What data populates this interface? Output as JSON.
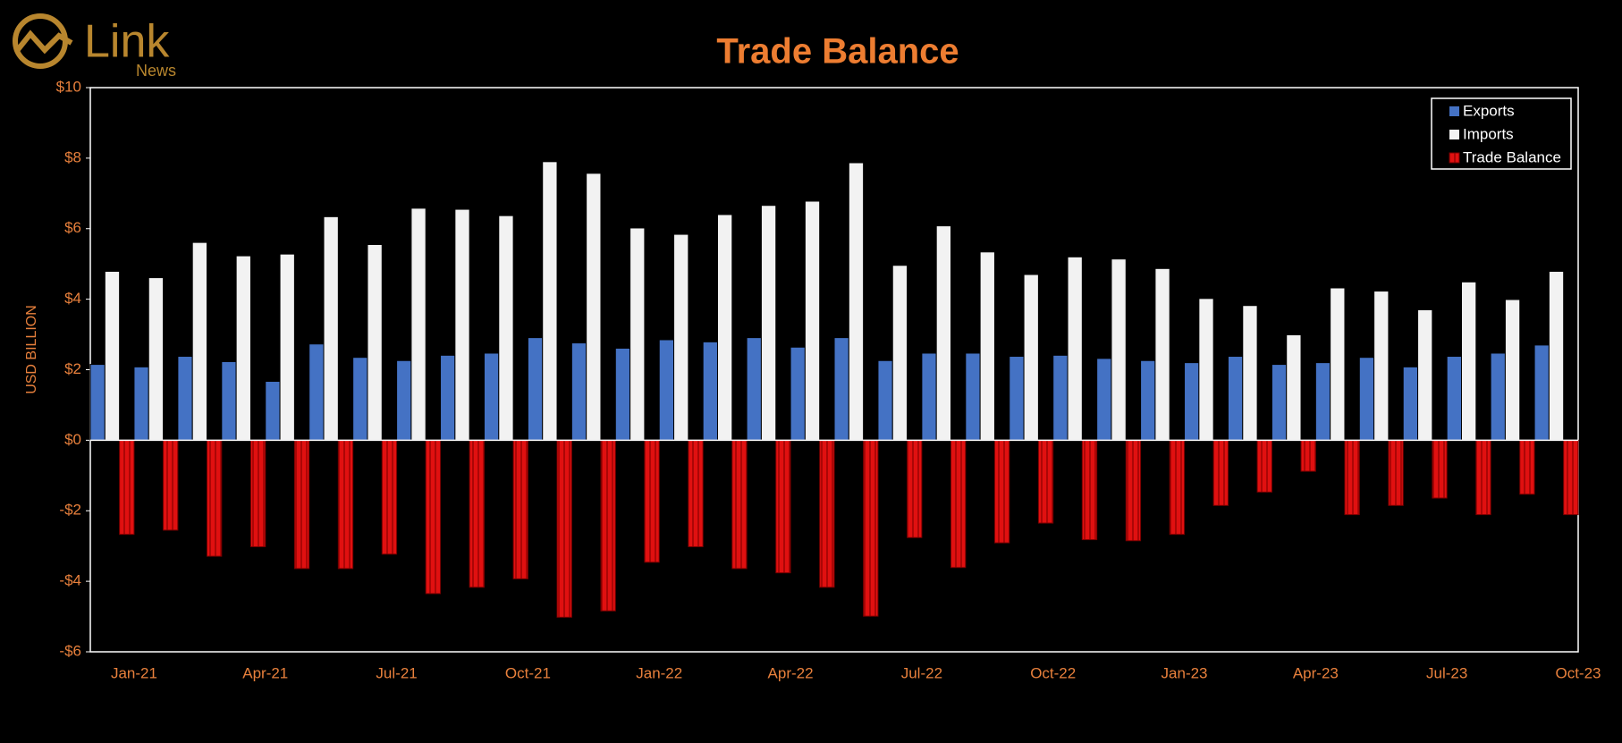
{
  "logo": {
    "text": "Link",
    "sub": "News"
  },
  "chart_data": {
    "type": "bar",
    "title": "Trade Balance",
    "y_label": "USD BILLION",
    "categories": [
      "Jan-21",
      null,
      null,
      "Apr-21",
      null,
      null,
      "Jul-21",
      null,
      null,
      "Oct-21",
      null,
      null,
      "Jan-22",
      null,
      null,
      "Apr-22",
      null,
      null,
      "Jul-22",
      null,
      null,
      "Oct-22",
      null,
      null,
      "Jan-23",
      null,
      null,
      "Apr-23",
      null,
      null,
      "Jul-23",
      null,
      null,
      "Oct-23"
    ],
    "series": [
      {
        "name": "Exports",
        "color": "#4472c4",
        "values": [
          2.15,
          2.08,
          2.38,
          2.23,
          1.67,
          2.73,
          2.35,
          2.26,
          2.41,
          2.47,
          2.91,
          2.76,
          2.61,
          2.85,
          2.79,
          2.91,
          2.64,
          2.91,
          2.26,
          2.47,
          2.47,
          2.38,
          2.41,
          2.32,
          2.26,
          2.2,
          2.38,
          2.15,
          2.2,
          2.35,
          2.08,
          2.38,
          2.47,
          2.7
        ]
      },
      {
        "name": "Imports",
        "color": "#f2f2f2",
        "values": [
          4.79,
          4.61,
          5.61,
          5.23,
          5.28,
          6.34,
          5.55,
          6.58,
          6.55,
          6.37,
          7.9,
          7.57,
          6.02,
          5.84,
          6.4,
          6.66,
          6.78,
          7.87,
          4.96,
          6.08,
          5.34,
          4.7,
          5.2,
          5.14,
          4.87,
          4.02,
          3.82,
          2.99,
          4.32,
          4.23,
          3.7,
          4.49,
          3.99,
          4.79
        ]
      },
      {
        "name": "Trade Balance",
        "color": "#e01010",
        "values": [
          -2.67,
          -2.55,
          -3.29,
          -3.02,
          -3.64,
          -3.64,
          -3.23,
          -4.35,
          -4.17,
          -3.93,
          -5.02,
          -4.84,
          -3.46,
          -3.02,
          -3.64,
          -3.76,
          -4.17,
          -4.99,
          -2.76,
          -3.61,
          -2.91,
          -2.35,
          -2.82,
          -2.85,
          -2.67,
          -1.85,
          -1.47,
          -0.88,
          -2.11,
          -1.85,
          -1.64,
          -2.11,
          -1.53,
          -2.11
        ]
      }
    ],
    "ylim": [
      -6,
      10
    ],
    "yticks": [
      {
        "value": -6,
        "label": "-$6"
      },
      {
        "value": -4,
        "label": "-$4"
      },
      {
        "value": -2,
        "label": "-$2"
      },
      {
        "value": 0,
        "label": "$0"
      },
      {
        "value": 2,
        "label": "$2"
      },
      {
        "value": 4,
        "label": "$4"
      },
      {
        "value": 6,
        "label": "$6"
      },
      {
        "value": 8,
        "label": "$8"
      },
      {
        "value": 10,
        "label": "$10"
      }
    ],
    "legend": "top-right"
  }
}
